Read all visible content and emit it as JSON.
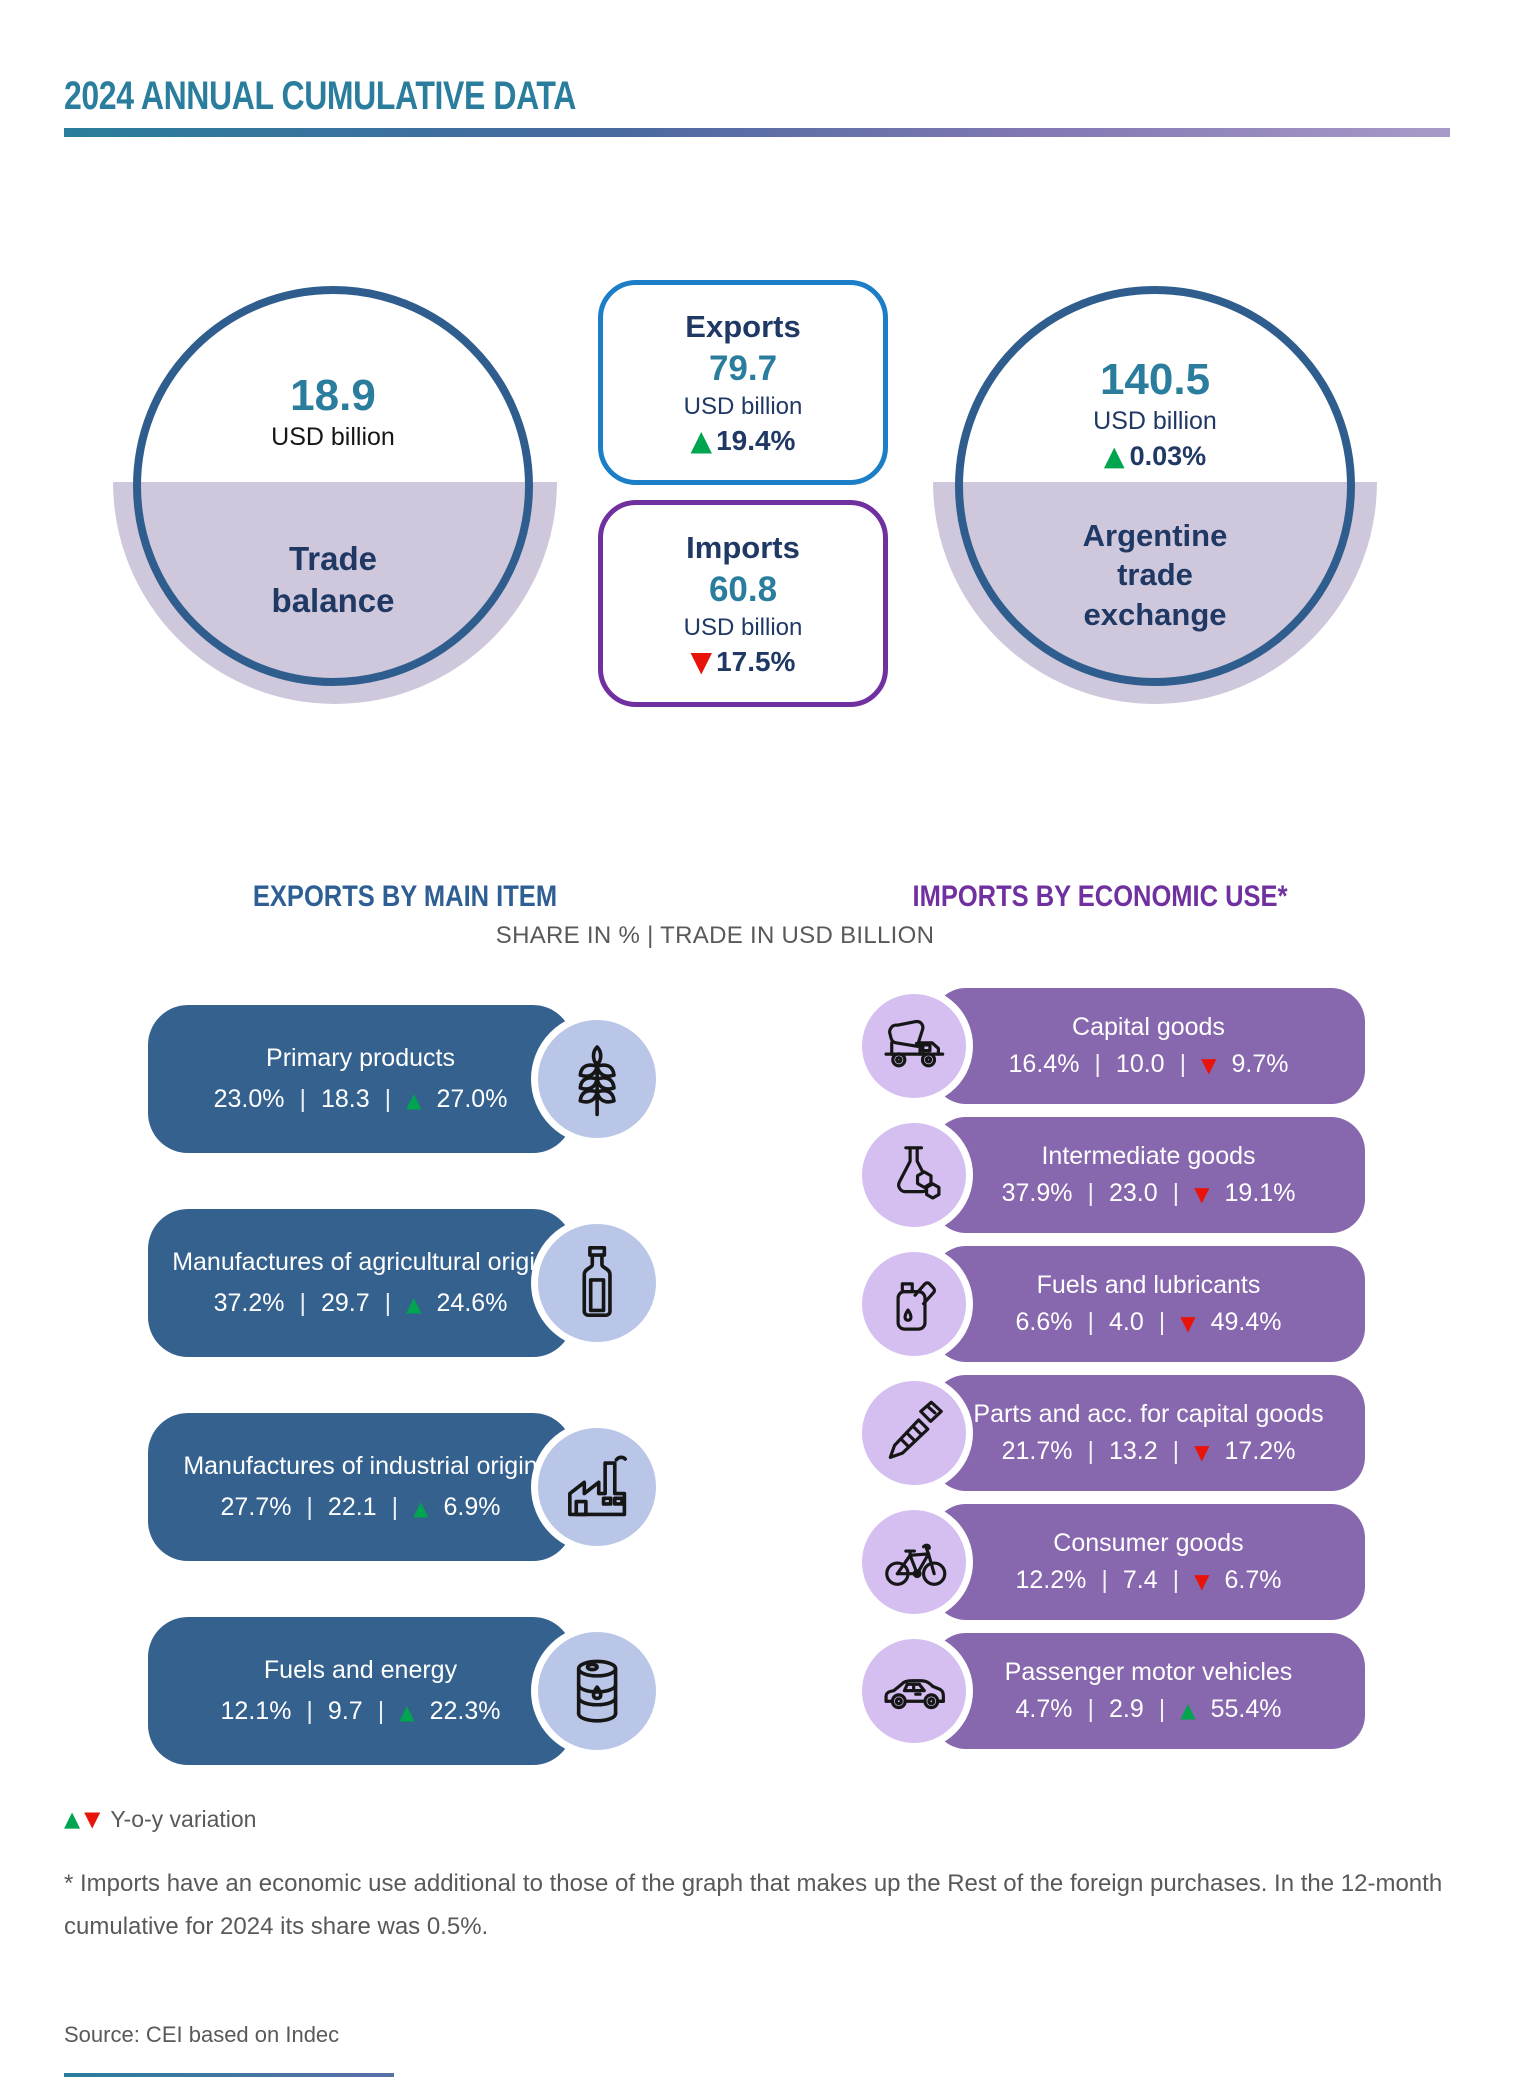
{
  "title": "2024 ANNUAL CUMULATIVE DATA",
  "colors": {
    "teal": "#2A7D9C",
    "navy": "#1F3864",
    "circle_ring": "#2F5E8E",
    "lavender": "#CFC8DC",
    "export_box_border": "#1B7EC6",
    "import_box_border": "#7030A0",
    "export_pill": "#35618E",
    "export_icon_bg": "#B9C6E8",
    "import_pill": "#8767AD",
    "import_icon_bg": "#D5BFF1",
    "up_green": "#00A550",
    "down_red": "#E8140C",
    "gray_text": "#595959"
  },
  "summary": {
    "trade_balance": {
      "value": "18.9",
      "unit": "USD billion",
      "label": "Trade balance"
    },
    "exports": {
      "label": "Exports",
      "value": "79.7",
      "unit": "USD billion",
      "direction": "up",
      "variation": "19.4%"
    },
    "imports": {
      "label": "Imports",
      "value": "60.8",
      "unit": "USD billion",
      "direction": "down",
      "variation": "17.5%"
    },
    "trade_exchange": {
      "value": "140.5",
      "unit": "USD billion",
      "direction": "up",
      "variation": "0.03%",
      "label": "Argentine trade exchange"
    }
  },
  "sections": {
    "separator": "|",
    "subtitle": "SHARE IN % | TRADE IN USD BILLION",
    "exports": {
      "heading": "EXPORTS BY MAIN ITEM",
      "items": [
        {
          "label": "Primary products",
          "share": "23.0%",
          "trade": "18.3",
          "direction": "up",
          "variation": "27.0%",
          "icon": "wheat"
        },
        {
          "label": "Manufactures of agricultural origin",
          "share": "37.2%",
          "trade": "29.7",
          "direction": "up",
          "variation": "24.6%",
          "icon": "bottle"
        },
        {
          "label": "Manufactures of industrial origin",
          "share": "27.7%",
          "trade": "22.1",
          "direction": "up",
          "variation": "6.9%",
          "icon": "factory"
        },
        {
          "label": "Fuels and energy",
          "share": "12.1%",
          "trade": "9.7",
          "direction": "up",
          "variation": "22.3%",
          "icon": "barrel"
        }
      ]
    },
    "imports": {
      "heading": "IMPORTS BY ECONOMIC USE*",
      "items": [
        {
          "label": "Capital goods",
          "share": "16.4%",
          "trade": "10.0",
          "direction": "down",
          "variation": "9.7%",
          "icon": "mixer-truck"
        },
        {
          "label": "Intermediate goods",
          "share": "37.9%",
          "trade": "23.0",
          "direction": "down",
          "variation": "19.1%",
          "icon": "flask"
        },
        {
          "label": "Fuels and lubricants",
          "share": "6.6%",
          "trade": "4.0",
          "direction": "down",
          "variation": "49.4%",
          "icon": "oil-can"
        },
        {
          "label": "Parts and acc. for capital goods",
          "share": "21.7%",
          "trade": "13.2",
          "direction": "down",
          "variation": "17.2%",
          "icon": "screw"
        },
        {
          "label": "Consumer goods",
          "share": "12.2%",
          "trade": "7.4",
          "direction": "down",
          "variation": "6.7%",
          "icon": "bicycle"
        },
        {
          "label": "Passenger motor vehicles",
          "share": "4.7%",
          "trade": "2.9",
          "direction": "up",
          "variation": "55.4%",
          "icon": "car"
        }
      ]
    }
  },
  "footer": {
    "legend_label": "Y-o-y variation",
    "note": "* Imports have an economic use additional to those of the graph that makes up the Rest of the foreign purchases. In the 12-month cumulative for 2024 its share was 0.5%.",
    "source": "Source: CEI based on Indec"
  },
  "chart_data": [
    {
      "type": "bar",
      "title": "EXPORTS BY MAIN ITEM",
      "subtitle": "SHARE IN % | TRADE IN USD BILLION",
      "categories": [
        "Primary products",
        "Manufactures of agricultural origin",
        "Manufactures of industrial origin",
        "Fuels and energy"
      ],
      "series": [
        {
          "name": "Share in %",
          "values": [
            23.0,
            37.2,
            27.7,
            12.1
          ]
        },
        {
          "name": "Trade in USD billion",
          "values": [
            18.3,
            29.7,
            22.1,
            9.7
          ]
        },
        {
          "name": "Y-o-y variation in %",
          "values": [
            27.0,
            24.6,
            6.9,
            22.3
          ]
        }
      ]
    },
    {
      "type": "bar",
      "title": "IMPORTS BY ECONOMIC USE*",
      "subtitle": "SHARE IN % | TRADE IN USD BILLION",
      "categories": [
        "Capital goods",
        "Intermediate goods",
        "Fuels and lubricants",
        "Parts and acc. for capital goods",
        "Consumer goods",
        "Passenger motor vehicles"
      ],
      "series": [
        {
          "name": "Share in %",
          "values": [
            16.4,
            37.9,
            6.6,
            21.7,
            12.2,
            4.7
          ]
        },
        {
          "name": "Trade in USD billion",
          "values": [
            10.0,
            23.0,
            4.0,
            13.2,
            7.4,
            2.9
          ]
        },
        {
          "name": "Y-o-y variation in %",
          "values": [
            -9.7,
            -19.1,
            -49.4,
            -17.2,
            -6.7,
            55.4
          ]
        }
      ]
    },
    {
      "type": "table",
      "title": "2024 ANNUAL CUMULATIVE DATA (USD billion)",
      "categories": [
        "Trade balance",
        "Exports",
        "Imports",
        "Argentine trade exchange"
      ],
      "values": [
        18.9,
        79.7,
        60.8,
        140.5
      ],
      "yoy_variation_pct": [
        null,
        19.4,
        -17.5,
        0.03
      ]
    }
  ]
}
